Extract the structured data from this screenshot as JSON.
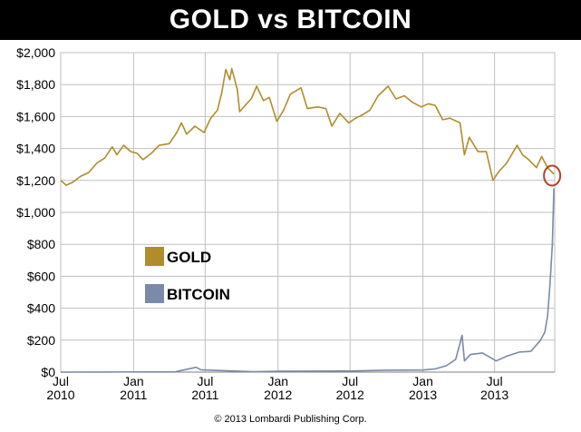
{
  "header": {
    "title": "GOLD vs BITCOIN"
  },
  "footer": {
    "copyright": "© 2013 Lombardi Publishing Corp."
  },
  "colors": {
    "title_background": "#000000",
    "gold": "#b08d2a",
    "bitcoin": "#7a8aa8",
    "highlight_circle": "#b5412b",
    "grid": "#bfbfbf"
  },
  "chart_data": {
    "type": "line",
    "title": "GOLD vs BITCOIN",
    "xlabel": "",
    "ylabel": "",
    "ylim": [
      0,
      2000
    ],
    "xlim": [
      "2010-07-01",
      "2013-11-30"
    ],
    "grid": true,
    "legend_position": "center-left",
    "y_ticks": [
      {
        "value": 0,
        "label": "$0"
      },
      {
        "value": 200,
        "label": "$200"
      },
      {
        "value": 400,
        "label": "$400"
      },
      {
        "value": 600,
        "label": "$600"
      },
      {
        "value": 800,
        "label": "$800"
      },
      {
        "value": 1000,
        "label": "$1,000"
      },
      {
        "value": 1200,
        "label": "$1,200"
      },
      {
        "value": 1400,
        "label": "$1,400"
      },
      {
        "value": 1600,
        "label": "$1,600"
      },
      {
        "value": 1800,
        "label": "$1,800"
      },
      {
        "value": 2000,
        "label": "$2,000"
      }
    ],
    "x_ticks": [
      {
        "date": "2010-07-01",
        "label": [
          "Jul",
          "2010"
        ]
      },
      {
        "date": "2011-01-01",
        "label": [
          "Jan",
          "2011"
        ]
      },
      {
        "date": "2011-07-01",
        "label": [
          "Jul",
          "2011"
        ]
      },
      {
        "date": "2012-01-01",
        "label": [
          "Jan",
          "2012"
        ]
      },
      {
        "date": "2012-07-01",
        "label": [
          "Jul",
          "2012"
        ]
      },
      {
        "date": "2013-01-01",
        "label": [
          "Jan",
          "2013"
        ]
      },
      {
        "date": "2013-07-01",
        "label": [
          "Jul",
          "2013"
        ]
      }
    ],
    "series": [
      {
        "name": "GOLD",
        "color": "#b08d2a",
        "points": [
          [
            "2010-07-01",
            1200
          ],
          [
            "2010-07-15",
            1170
          ],
          [
            "2010-08-01",
            1190
          ],
          [
            "2010-08-20",
            1225
          ],
          [
            "2010-09-10",
            1250
          ],
          [
            "2010-10-01",
            1310
          ],
          [
            "2010-10-20",
            1340
          ],
          [
            "2010-11-08",
            1410
          ],
          [
            "2010-11-20",
            1360
          ],
          [
            "2010-12-07",
            1420
          ],
          [
            "2010-12-25",
            1380
          ],
          [
            "2011-01-10",
            1370
          ],
          [
            "2011-01-25",
            1330
          ],
          [
            "2011-02-15",
            1370
          ],
          [
            "2011-03-07",
            1420
          ],
          [
            "2011-04-01",
            1430
          ],
          [
            "2011-04-20",
            1500
          ],
          [
            "2011-05-02",
            1560
          ],
          [
            "2011-05-15",
            1490
          ],
          [
            "2011-06-05",
            1540
          ],
          [
            "2011-06-28",
            1500
          ],
          [
            "2011-07-15",
            1590
          ],
          [
            "2011-08-01",
            1640
          ],
          [
            "2011-08-12",
            1750
          ],
          [
            "2011-08-22",
            1895
          ],
          [
            "2011-09-01",
            1830
          ],
          [
            "2011-09-06",
            1900
          ],
          [
            "2011-09-20",
            1770
          ],
          [
            "2011-09-26",
            1630
          ],
          [
            "2011-10-10",
            1670
          ],
          [
            "2011-10-25",
            1710
          ],
          [
            "2011-11-08",
            1790
          ],
          [
            "2011-11-25",
            1700
          ],
          [
            "2011-12-10",
            1720
          ],
          [
            "2011-12-29",
            1570
          ],
          [
            "2012-01-15",
            1640
          ],
          [
            "2012-02-01",
            1740
          ],
          [
            "2012-02-28",
            1780
          ],
          [
            "2012-03-15",
            1650
          ],
          [
            "2012-04-10",
            1660
          ],
          [
            "2012-05-01",
            1650
          ],
          [
            "2012-05-16",
            1540
          ],
          [
            "2012-06-05",
            1620
          ],
          [
            "2012-06-28",
            1560
          ],
          [
            "2012-07-15",
            1590
          ],
          [
            "2012-08-01",
            1610
          ],
          [
            "2012-08-20",
            1640
          ],
          [
            "2012-09-10",
            1730
          ],
          [
            "2012-10-05",
            1790
          ],
          [
            "2012-10-25",
            1710
          ],
          [
            "2012-11-15",
            1730
          ],
          [
            "2012-12-05",
            1690
          ],
          [
            "2012-12-28",
            1660
          ],
          [
            "2013-01-15",
            1680
          ],
          [
            "2013-02-01",
            1670
          ],
          [
            "2013-02-20",
            1580
          ],
          [
            "2013-03-10",
            1590
          ],
          [
            "2013-04-05",
            1560
          ],
          [
            "2013-04-16",
            1360
          ],
          [
            "2013-04-28",
            1470
          ],
          [
            "2013-05-20",
            1380
          ],
          [
            "2013-06-10",
            1380
          ],
          [
            "2013-06-27",
            1200
          ],
          [
            "2013-07-10",
            1250
          ],
          [
            "2013-08-01",
            1310
          ],
          [
            "2013-08-27",
            1420
          ],
          [
            "2013-09-10",
            1360
          ],
          [
            "2013-09-25",
            1330
          ],
          [
            "2013-10-15",
            1280
          ],
          [
            "2013-10-28",
            1350
          ],
          [
            "2013-11-12",
            1280
          ],
          [
            "2013-11-28",
            1240
          ]
        ]
      },
      {
        "name": "BITCOIN",
        "color": "#7a8aa8",
        "points": [
          [
            "2010-07-01",
            0.05
          ],
          [
            "2010-11-01",
            0.3
          ],
          [
            "2011-02-01",
            1
          ],
          [
            "2011-04-15",
            1
          ],
          [
            "2011-06-08",
            30
          ],
          [
            "2011-06-20",
            15
          ],
          [
            "2011-08-01",
            10
          ],
          [
            "2011-11-01",
            3
          ],
          [
            "2012-01-01",
            5
          ],
          [
            "2012-07-01",
            7
          ],
          [
            "2012-10-01",
            12
          ],
          [
            "2013-01-01",
            13
          ],
          [
            "2013-02-01",
            20
          ],
          [
            "2013-03-01",
            40
          ],
          [
            "2013-03-25",
            80
          ],
          [
            "2013-04-10",
            230
          ],
          [
            "2013-04-16",
            70
          ],
          [
            "2013-05-01",
            110
          ],
          [
            "2013-06-01",
            120
          ],
          [
            "2013-07-05",
            70
          ],
          [
            "2013-08-01",
            100
          ],
          [
            "2013-09-01",
            125
          ],
          [
            "2013-10-01",
            130
          ],
          [
            "2013-10-25",
            200
          ],
          [
            "2013-11-05",
            250
          ],
          [
            "2013-11-12",
            350
          ],
          [
            "2013-11-18",
            550
          ],
          [
            "2013-11-24",
            800
          ],
          [
            "2013-11-28",
            1150
          ]
        ]
      }
    ],
    "annotations": [
      {
        "type": "circle",
        "date": "2013-11-28",
        "value": 1230,
        "color": "#b5412b"
      }
    ]
  }
}
